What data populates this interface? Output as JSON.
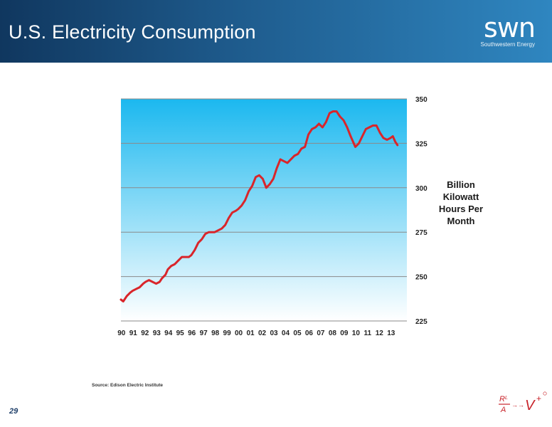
{
  "slide": {
    "title": "U.S. Electricity Consumption",
    "logo_text": "swn",
    "logo_subtext": "Southwestern Energy",
    "page_number": "29",
    "source": "Source: Edison Electric Institute"
  },
  "colors": {
    "header_dark": "#10375f",
    "header_light": "#2f86c0",
    "line": "#d9252a",
    "plot_top": "#1bb8ef",
    "plot_bottom": "#ffffff",
    "grid": "#8a8a8a"
  },
  "chart_data": {
    "type": "line",
    "title": "",
    "xlabel": "",
    "ylabel": "Billion Kilowatt Hours Per Month",
    "categories": [
      "90",
      "91",
      "92",
      "93",
      "94",
      "95",
      "96",
      "97",
      "98",
      "99",
      "00",
      "01",
      "02",
      "03",
      "04",
      "05",
      "06",
      "07",
      "08",
      "09",
      "10",
      "11",
      "12",
      "13"
    ],
    "ylim": [
      225,
      350
    ],
    "yticks": [
      225,
      250,
      275,
      300,
      325,
      350
    ],
    "xlim": [
      1990,
      2014.4
    ],
    "grid": true,
    "legend": "none",
    "series": [
      {
        "x": [
          1990.0,
          1990.2,
          1990.5,
          1990.8,
          1991.0,
          1991.3,
          1991.6,
          1991.9,
          1992.1,
          1992.4,
          1992.7,
          1993.0,
          1993.3,
          1993.5,
          1993.8,
          1994.0,
          1994.3,
          1994.6,
          1994.9,
          1995.2,
          1995.5,
          1995.8,
          1996.0,
          1996.3,
          1996.6,
          1996.9,
          1997.2,
          1997.5,
          1997.8,
          1998.0,
          1998.3,
          1998.6,
          1998.9,
          1999.2,
          1999.5,
          1999.8,
          2000.0,
          2000.3,
          2000.6,
          2000.9,
          2001.2,
          2001.5,
          2001.8,
          2002.1,
          2002.4,
          2002.7,
          2003.0,
          2003.3,
          2003.6,
          2003.9,
          2004.2,
          2004.5,
          2004.8,
          2005.1,
          2005.4,
          2005.7,
          2006.0,
          2006.3,
          2006.6,
          2006.9,
          2007.2,
          2007.5,
          2007.8,
          2008.1,
          2008.4,
          2008.7,
          2009.0,
          2009.3,
          2009.6,
          2009.8,
          2010.0,
          2010.3,
          2010.6,
          2010.9,
          2011.2,
          2011.5,
          2011.8,
          2012.1,
          2012.4,
          2012.7,
          2013.0,
          2013.2,
          2013.4,
          2013.6
        ],
        "values": [
          237,
          236,
          239,
          241,
          242,
          243,
          244,
          246,
          247,
          248,
          247,
          246,
          247,
          249,
          251,
          254,
          256,
          257,
          259,
          261,
          261,
          261,
          262,
          265,
          269,
          271,
          274,
          275,
          275,
          275,
          276,
          277,
          279,
          283,
          286,
          287,
          288,
          290,
          293,
          298,
          301,
          306,
          307,
          305,
          300,
          302,
          305,
          311,
          316,
          315,
          314,
          316,
          318,
          319,
          322,
          323,
          330,
          333,
          334,
          336,
          334,
          337,
          342,
          343,
          343,
          340,
          338,
          334,
          329,
          326,
          323,
          325,
          329,
          333,
          334,
          335,
          335,
          331,
          328,
          327,
          328,
          329,
          326,
          324
        ]
      }
    ]
  }
}
